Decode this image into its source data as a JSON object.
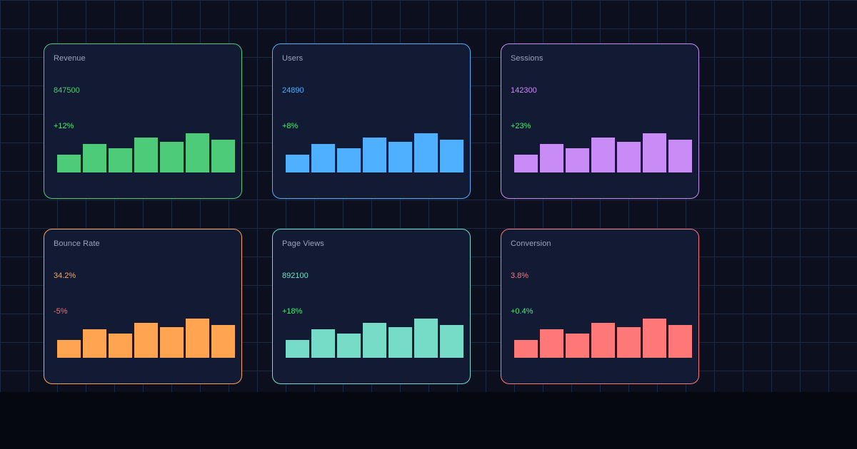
{
  "cards": [
    {
      "label": "Revenue",
      "value": "847500",
      "delta": "+12%",
      "accent": "#4ecb78",
      "delta_color": "#4ee87a",
      "bars": [
        25,
        40,
        34,
        49,
        43,
        55,
        46
      ]
    },
    {
      "label": "Users",
      "value": "24890",
      "delta": "+8%",
      "accent": "#4eb0ff",
      "delta_color": "#4ee87a",
      "bars": [
        25,
        40,
        34,
        49,
        43,
        55,
        46
      ]
    },
    {
      "label": "Sessions",
      "value": "142300",
      "delta": "+23%",
      "accent": "#c98cf7",
      "delta_color": "#4ee87a",
      "bars": [
        25,
        40,
        34,
        49,
        43,
        55,
        46
      ]
    },
    {
      "label": "Bounce Rate",
      "value": "34.2%",
      "delta": "-5%",
      "accent": "#ffa450",
      "delta_color": "#ff6b6b",
      "bars": [
        25,
        40,
        34,
        49,
        43,
        55,
        46
      ]
    },
    {
      "label": "Page Views",
      "value": "892100",
      "delta": "+18%",
      "accent": "#76dcc8",
      "delta_color": "#4ee87a",
      "bars": [
        25,
        40,
        34,
        49,
        43,
        55,
        46
      ]
    },
    {
      "label": "Conversion",
      "value": "3.8%",
      "delta": "+0.4%",
      "accent": "#ff7878",
      "delta_color": "#4ee87a",
      "bars": [
        25,
        40,
        34,
        49,
        43,
        55,
        46
      ]
    }
  ]
}
